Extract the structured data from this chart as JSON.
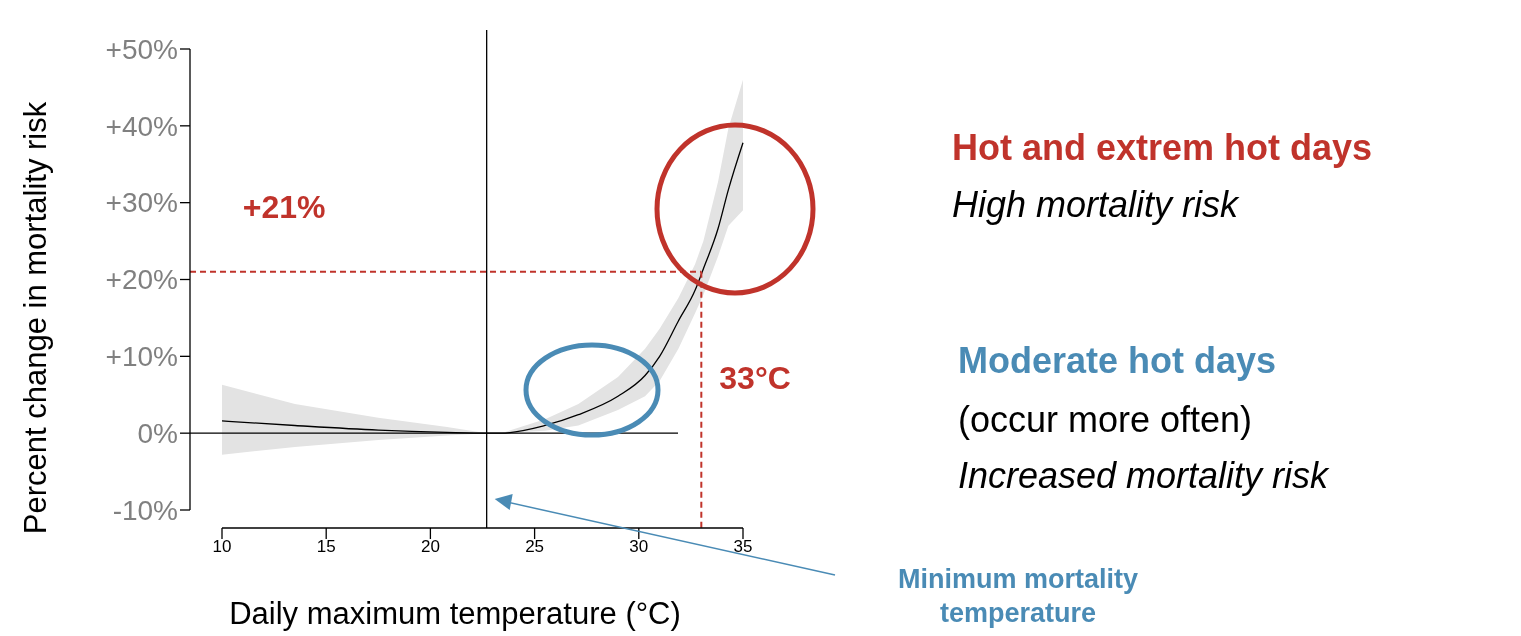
{
  "chart_data": {
    "type": "line",
    "xlabel": "Daily maximum temperature (°C)",
    "ylabel": "Percent change in mortality risk",
    "xlim": [
      10,
      35
    ],
    "xticks": [
      10,
      15,
      20,
      25,
      30,
      35
    ],
    "ylim": [
      -10,
      50
    ],
    "yticks": [
      {
        "value": -10,
        "label": "-10%"
      },
      {
        "value": 0,
        "label": "0%"
      },
      {
        "value": 10,
        "label": "+10%"
      },
      {
        "value": 20,
        "label": "+20%"
      },
      {
        "value": 30,
        "label": "+30%"
      },
      {
        "value": 40,
        "label": "+40%"
      },
      {
        "value": 50,
        "label": "+50%"
      }
    ],
    "series": [
      {
        "color": "#000000",
        "x": [
          10,
          13.5,
          17.5,
          20.8,
          22.7,
          23.4,
          25.5,
          27.1,
          29,
          30.3,
          31,
          31.9,
          32.7,
          33.1,
          33.8,
          34.3,
          35
        ],
        "values": [
          1.6,
          1.0,
          0.4,
          0.1,
          0,
          0,
          1.0,
          2.4,
          4.8,
          7.5,
          10,
          14.6,
          18.6,
          21.4,
          26.6,
          31.7,
          37.8
        ],
        "lower": [
          -2.8,
          -1.8,
          -0.9,
          -0.3,
          0,
          0,
          0.3,
          1.0,
          3.0,
          4.8,
          6.8,
          11,
          15.6,
          18,
          23,
          27,
          29
        ],
        "upper": [
          6.3,
          3.8,
          2.0,
          0.8,
          0,
          0,
          1.8,
          3.8,
          7.3,
          11,
          13.6,
          17.6,
          22,
          25,
          32.7,
          39.7,
          46
        ]
      }
    ],
    "ref_lines": [
      {
        "axis": "y",
        "value": 0,
        "color": "#000000",
        "line_style": "solid"
      },
      {
        "axis": "x",
        "value": 22.7,
        "color": "#000000",
        "line_style": "solid"
      },
      {
        "axis": "y",
        "value": 21,
        "label": "+21%",
        "color": "#c0332b",
        "line_style": "dashed"
      },
      {
        "axis": "x",
        "value": 33,
        "label": "33°C",
        "color": "#c0332b",
        "line_style": "dashed"
      }
    ],
    "annotations": [
      "Hot and extrem hot days",
      "High mortality risk",
      "Moderate hot days",
      "(occur more often)",
      "Increased mortality risk",
      "Minimum mortality temperature"
    ],
    "grid": false,
    "marker": "none",
    "line_style": "solid"
  }
}
